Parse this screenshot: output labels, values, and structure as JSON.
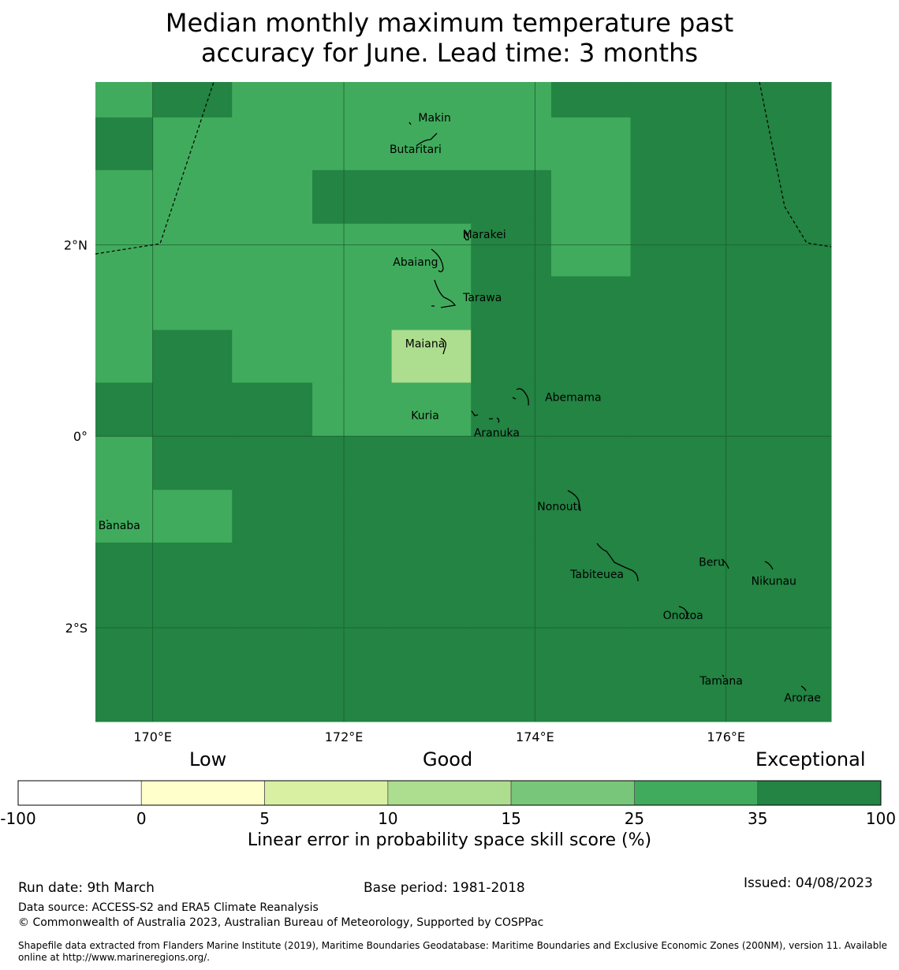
{
  "title": {
    "line1": "Median monthly maximum temperature past",
    "line2": "accuracy for June. Lead time: 3 months"
  },
  "map": {
    "lat_ticks": [
      {
        "lat": 2,
        "label": "2°N"
      },
      {
        "lat": 0,
        "label": "0°"
      },
      {
        "lat": -2,
        "label": "2°S"
      }
    ],
    "lon_ticks": [
      {
        "lon": 170,
        "label": "170°E"
      },
      {
        "lon": 172,
        "label": "172°E"
      },
      {
        "lon": 174,
        "label": "174°E"
      },
      {
        "lon": 176,
        "label": "176°E"
      }
    ],
    "extent": {
      "lon_min": 169.4,
      "lon_max": 177.1,
      "lat_min": -2.98,
      "lat_max": 3.7
    },
    "grid": {
      "lon_edges": [
        169.4,
        170.0,
        170.83,
        171.67,
        172.5,
        173.33,
        174.17,
        175.0,
        177.1
      ],
      "lat_edges": [
        3.7,
        3.33,
        2.78,
        2.22,
        1.67,
        1.11,
        0.56,
        0.0,
        -0.56,
        -1.11,
        -2.98
      ],
      "class_values": [
        [
          6,
          7,
          6,
          6,
          6,
          6,
          7,
          7
        ],
        [
          7,
          6,
          6,
          6,
          6,
          6,
          6,
          7
        ],
        [
          6,
          6,
          6,
          7,
          7,
          7,
          6,
          7
        ],
        [
          6,
          6,
          6,
          6,
          6,
          7,
          6,
          7
        ],
        [
          6,
          6,
          6,
          6,
          6,
          7,
          7,
          7
        ],
        [
          6,
          7,
          6,
          6,
          4,
          7,
          7,
          7
        ],
        [
          7,
          7,
          7,
          6,
          6,
          7,
          7,
          7
        ],
        [
          6,
          7,
          7,
          7,
          7,
          7,
          7,
          7
        ],
        [
          6,
          6,
          7,
          7,
          7,
          7,
          7,
          7
        ],
        [
          7,
          7,
          7,
          7,
          7,
          7,
          7,
          7
        ]
      ]
    },
    "places": [
      {
        "name": "Makin",
        "lon": 172.95,
        "lat": 3.33
      },
      {
        "name": "Butaritari",
        "lon": 172.75,
        "lat": 3.0
      },
      {
        "name": "Marakei",
        "lon": 173.47,
        "lat": 2.11
      },
      {
        "name": "Abaiang",
        "lon": 172.75,
        "lat": 1.82
      },
      {
        "name": "Tarawa",
        "lon": 173.45,
        "lat": 1.45
      },
      {
        "name": "Maiana",
        "lon": 172.85,
        "lat": 0.97
      },
      {
        "name": "Abemama",
        "lon": 174.4,
        "lat": 0.41
      },
      {
        "name": "Kuria",
        "lon": 172.85,
        "lat": 0.22
      },
      {
        "name": "Aranuka",
        "lon": 173.6,
        "lat": 0.04
      },
      {
        "name": "Nonouti",
        "lon": 174.25,
        "lat": -0.73
      },
      {
        "name": "Banaba",
        "lon": 169.65,
        "lat": -0.93
      },
      {
        "name": "Beru",
        "lon": 175.85,
        "lat": -1.31
      },
      {
        "name": "Tabiteuea",
        "lon": 174.65,
        "lat": -1.44
      },
      {
        "name": "Nikunau",
        "lon": 176.5,
        "lat": -1.51
      },
      {
        "name": "Onotoa",
        "lon": 175.55,
        "lat": -1.87
      },
      {
        "name": "Tamana",
        "lon": 175.95,
        "lat": -2.55
      },
      {
        "name": "Arorae",
        "lon": 176.8,
        "lat": -2.73
      }
    ]
  },
  "colorbar": {
    "boundaries": [
      "-100",
      "0",
      "5",
      "10",
      "15",
      "25",
      "35",
      "100"
    ],
    "colors": [
      "#ffffff",
      "#ffffcc",
      "#d9f0a3",
      "#addd8e",
      "#78c679",
      "#41ab5d",
      "#238443"
    ],
    "category_labels": [
      "Low",
      "Good",
      "Exceptional"
    ],
    "axis_label": "Linear error in probability space skill score (%)"
  },
  "footer": {
    "run_date": "Run date: 9th March",
    "base_period": "Base period: 1981-2018",
    "issued": "Issued: 04/08/2023",
    "data_source": "Data source: ACCESS-S2 and ERA5 Climate Reanalysis",
    "copyright": "© Commonwealth of Australia 2023, Australian Bureau of Meteorology, Supported by COSPPac",
    "shapefile": "Shapefile data extracted from Flanders Marine Institute (2019), Maritime Boundaries Geodatabase: Maritime Boundaries and Exclusive Economic Zones (200NM), version 11. Available online at http://www.marineregions.org/."
  }
}
